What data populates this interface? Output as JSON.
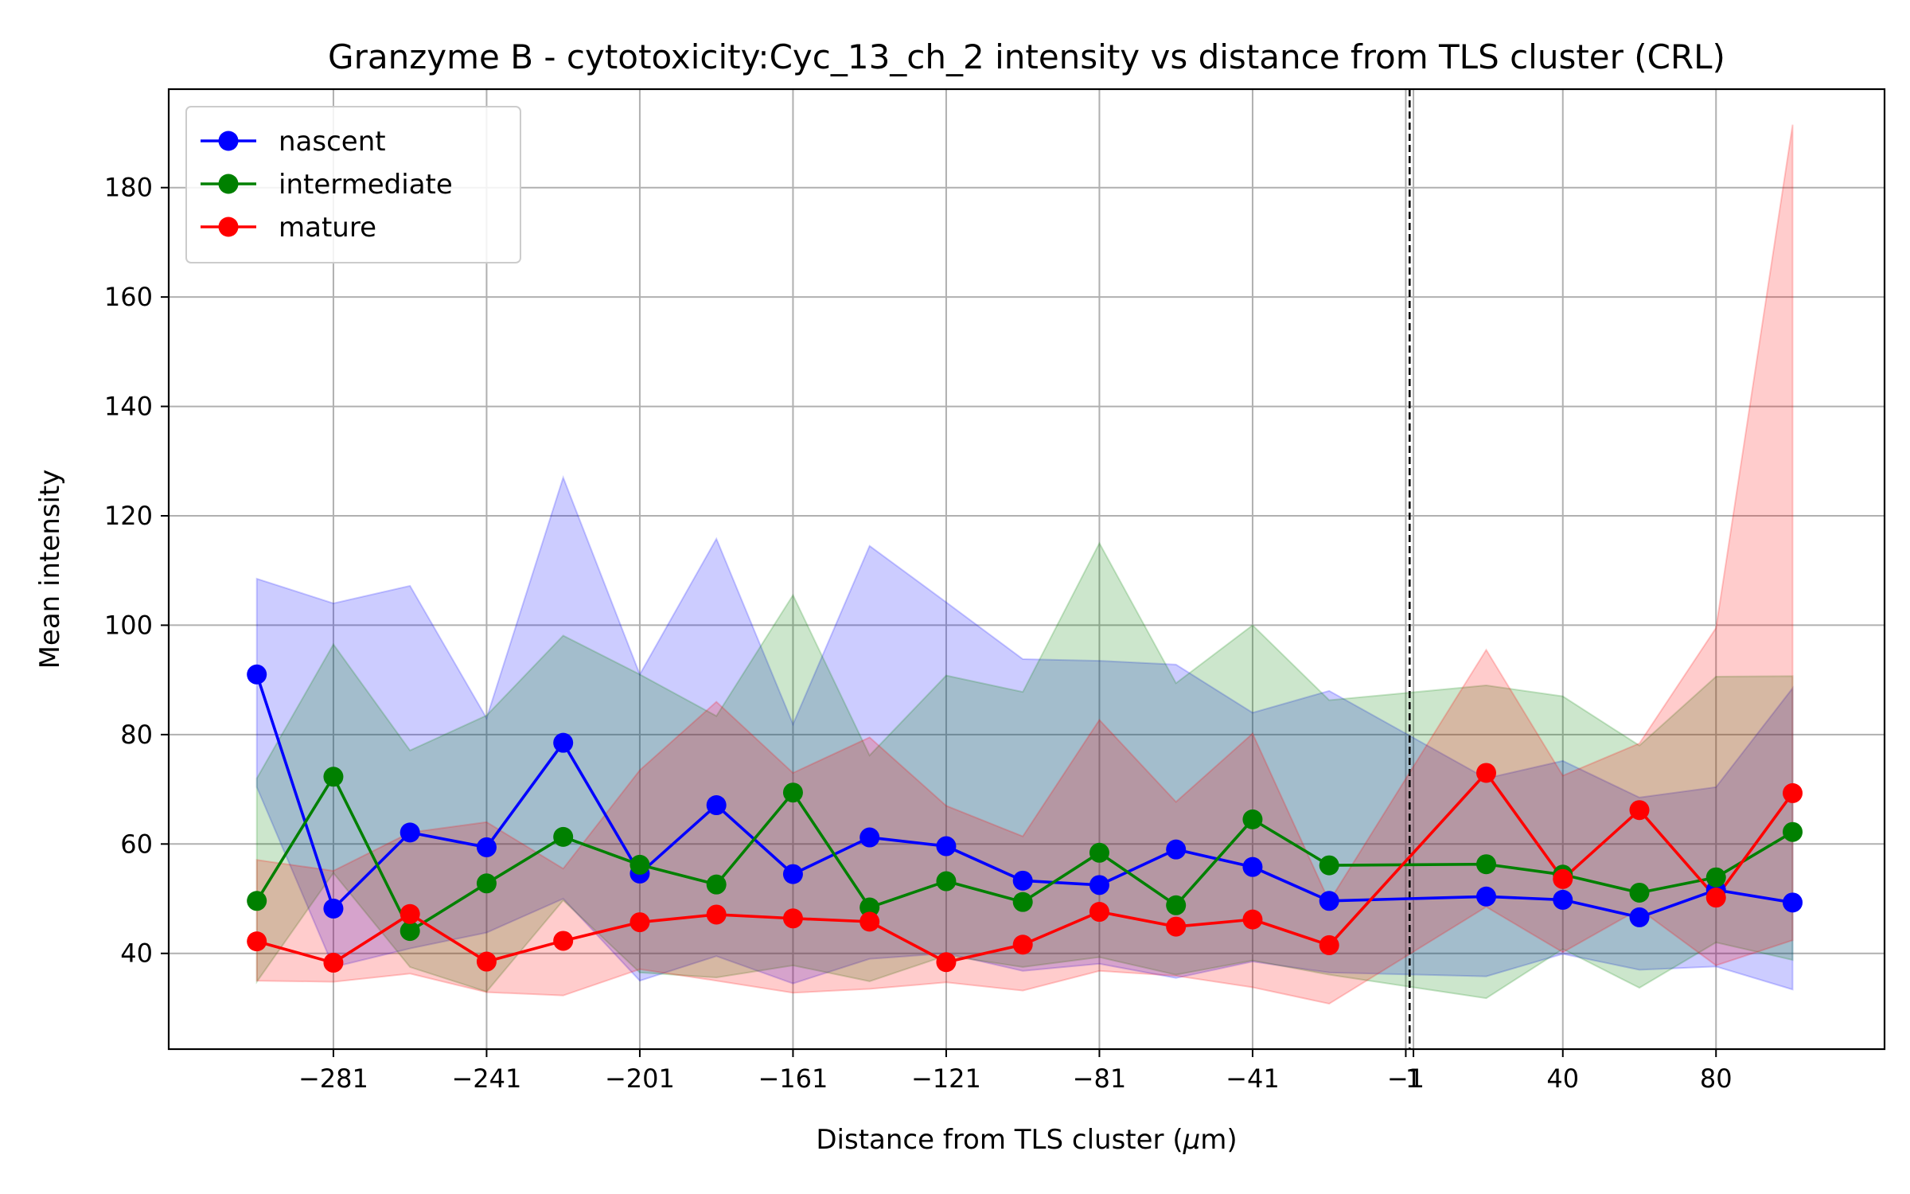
{
  "chart_data": {
    "type": "line",
    "title": "Granzyme B - cytotoxicity:Cyc_13_ch_2 intensity vs distance from TLS cluster (CRL)",
    "xlabel_prefix": "Distance from TLS cluster (",
    "xlabel_mu": "μ",
    "xlabel_suffix": "m)",
    "ylabel": "Mean intensity",
    "xlim": [
      -324,
      124
    ],
    "ylim": [
      22.5,
      198
    ],
    "x_ticks": [
      -281,
      -241,
      -201,
      -161,
      -121,
      -81,
      -41,
      -1,
      1,
      40,
      80
    ],
    "x_tick_labels": [
      "−281",
      "−241",
      "−201",
      "−161",
      "−121",
      "−81",
      "−41",
      "−1",
      "1",
      "40",
      "80"
    ],
    "y_ticks": [
      40,
      60,
      80,
      100,
      120,
      140,
      160,
      180
    ],
    "y_tick_labels": [
      "40",
      "60",
      "80",
      "100",
      "120",
      "140",
      "160",
      "180"
    ],
    "grid": true,
    "legend_position": "top-left",
    "vline_x": 0,
    "vline_style": "dashed-black",
    "x": [
      -301,
      -281,
      -261,
      -241,
      -221,
      -201,
      -181,
      -161,
      -141,
      -121,
      -101,
      -81,
      -61,
      -41,
      -21,
      20,
      40,
      60,
      80,
      100
    ],
    "series": [
      {
        "name": "nascent",
        "color": "#0000ff",
        "band_color": "#0000ff",
        "values": [
          91,
          48.2,
          62.1,
          59.4,
          78.5,
          54.6,
          67.1,
          54.5,
          61.2,
          59.6,
          53.3,
          52.5,
          59,
          55.8,
          49.6,
          50.4,
          49.8,
          46.6,
          51.6,
          49.3
        ],
        "upper": [
          108.5,
          104,
          107.2,
          83,
          127,
          91,
          115.8,
          81.9,
          114.5,
          104.2,
          93.8,
          93.5,
          92.8,
          84,
          88,
          72,
          75.2,
          68.5,
          70.4,
          88.5
        ],
        "lower": [
          70.4,
          37.5,
          40.9,
          43.8,
          50,
          35,
          39.5,
          34.5,
          39,
          40,
          36.8,
          38.1,
          35.5,
          38.5,
          36.5,
          35.8,
          39.9,
          37,
          37.6,
          33.4
        ]
      },
      {
        "name": "intermediate",
        "color": "#008000",
        "band_color": "#008000",
        "values": [
          49.6,
          72.3,
          44.1,
          52.8,
          61.3,
          56.2,
          52.6,
          69.4,
          48.4,
          53.2,
          49.4,
          58.4,
          48.8,
          64.5,
          56.1,
          56.3,
          54.4,
          51.1,
          53.9,
          62.2
        ],
        "upper": [
          72,
          96.5,
          77.1,
          83.5,
          98.1,
          91,
          83.4,
          105.5,
          76.2,
          90.8,
          87.8,
          115,
          89.4,
          100,
          86.3,
          89,
          87,
          78,
          90.6,
          90.7
        ],
        "lower": [
          34.8,
          54.7,
          37.5,
          33,
          49.7,
          36.5,
          35.6,
          37.8,
          34.9,
          39.6,
          37.5,
          39.3,
          36.1,
          38.7,
          36.1,
          31.8,
          40.8,
          33.7,
          42,
          38.8
        ]
      },
      {
        "name": "mature",
        "color": "#ff0000",
        "band_color": "#ff0000",
        "values": [
          42.2,
          38.3,
          47.2,
          38.5,
          42.3,
          45.7,
          47.1,
          46.4,
          45.8,
          38.4,
          41.6,
          47.6,
          44.9,
          46.2,
          41.5,
          73,
          53.6,
          66.2,
          50.2,
          69.3
        ],
        "upper": [
          57.1,
          55.1,
          62.1,
          64,
          55.5,
          73.5,
          86,
          73,
          79.5,
          67,
          61.4,
          82.7,
          67.7,
          80.2,
          49.5,
          95.5,
          72.5,
          78.4,
          99.5,
          191.5
        ],
        "lower": [
          35,
          34.8,
          36.3,
          32.9,
          32.3,
          37.1,
          35,
          32.8,
          33.5,
          34.7,
          33.2,
          36.8,
          35.9,
          33.8,
          30.8,
          48.5,
          40.2,
          48.1,
          37.8,
          42.4
        ]
      }
    ]
  }
}
